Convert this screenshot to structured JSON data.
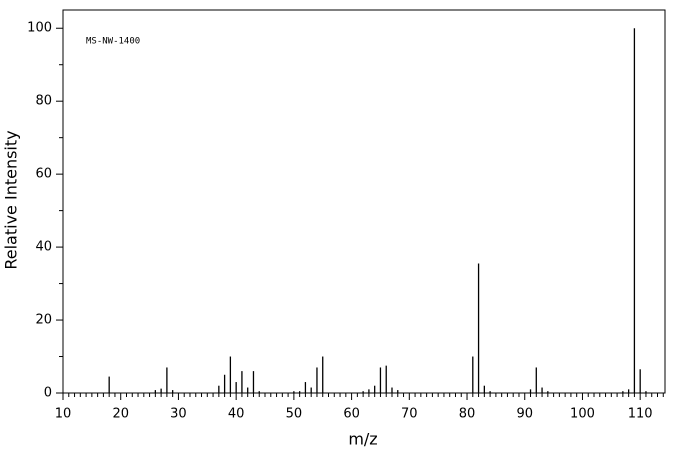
{
  "chart_data": {
    "type": "bar",
    "annotation": "MS-NW-1400",
    "xlabel": "m/z",
    "ylabel": "Relative Intensity",
    "color": "#000000",
    "x": [
      18,
      26,
      27,
      28,
      29,
      37,
      38,
      39,
      40,
      41,
      42,
      43,
      44,
      50,
      51,
      52,
      53,
      54,
      55,
      62,
      63,
      64,
      65,
      66,
      67,
      68,
      81,
      82,
      83,
      84,
      91,
      92,
      93,
      94,
      107,
      108,
      109,
      110,
      111
    ],
    "values": [
      4.5,
      0.8,
      1.2,
      7,
      0.8,
      2,
      5,
      10,
      3,
      6,
      1.5,
      6,
      0.5,
      0.5,
      0.5,
      3,
      1.5,
      7,
      10,
      0.5,
      1,
      2,
      7,
      7.5,
      1.5,
      0.8,
      10,
      35.5,
      2,
      0.5,
      1,
      7,
      1.5,
      0.5,
      0.5,
      1,
      100,
      6.5,
      0.5
    ],
    "xlim": [
      10,
      114.3
    ],
    "ylim": [
      0,
      105
    ],
    "xticks": [
      10,
      20,
      30,
      40,
      50,
      60,
      70,
      80,
      90,
      100,
      110
    ],
    "xminorticks": [
      11,
      12,
      13,
      14,
      15,
      16,
      17,
      18,
      19,
      21,
      22,
      23,
      24,
      25,
      26,
      27,
      28,
      29,
      31,
      32,
      33,
      34,
      35,
      36,
      37,
      38,
      39,
      41,
      42,
      43,
      44,
      45,
      46,
      47,
      48,
      49,
      51,
      52,
      53,
      54,
      55,
      56,
      57,
      58,
      59,
      61,
      62,
      63,
      64,
      65,
      66,
      67,
      68,
      69,
      71,
      72,
      73,
      74,
      75,
      76,
      77,
      78,
      79,
      81,
      82,
      83,
      84,
      85,
      86,
      87,
      88,
      89,
      91,
      92,
      93,
      94,
      95,
      96,
      97,
      98,
      99,
      101,
      102,
      103,
      104,
      105,
      106,
      107,
      108,
      109,
      111,
      112,
      113,
      114
    ],
    "yticks": [
      0,
      20,
      40,
      60,
      80,
      100
    ],
    "yminorticks": [
      10,
      30,
      50,
      70,
      90
    ]
  }
}
